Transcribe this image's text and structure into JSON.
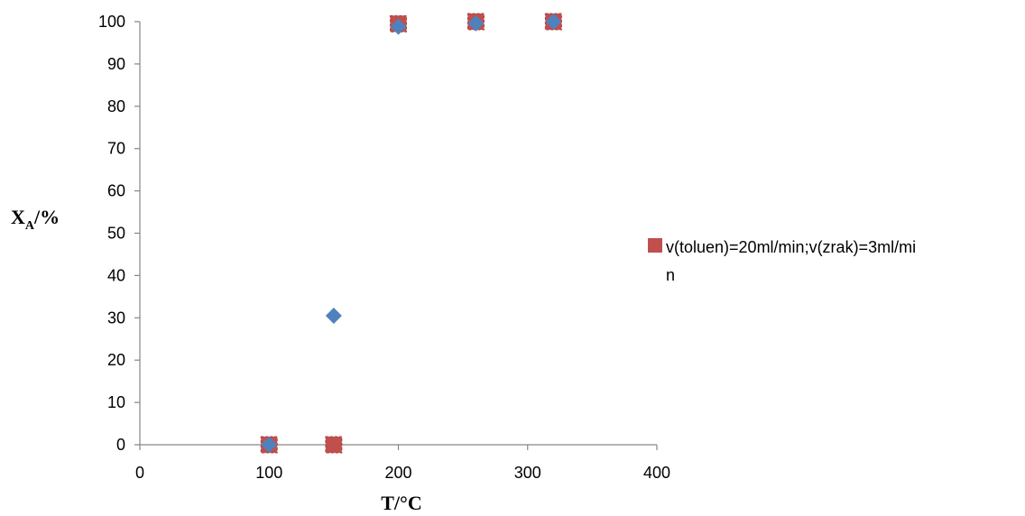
{
  "chart_data": {
    "type": "scatter",
    "xlabel": "T/°C",
    "ylabel_main": "X",
    "ylabel_sub": "A",
    "ylabel_suffix": "/%",
    "xlim": [
      0,
      400
    ],
    "ylim": [
      0,
      100
    ],
    "x_ticks": [
      0,
      100,
      200,
      300,
      400
    ],
    "y_ticks": [
      0,
      10,
      20,
      30,
      40,
      50,
      60,
      70,
      80,
      90,
      100
    ],
    "grid": false,
    "legend_position": "right",
    "series": [
      {
        "name": "v(toluen)=20ml/min;v(zrak)=3ml/min",
        "legend_line1": "v(toluen)=20ml/min;v(zrak)=3ml/mi",
        "legend_line2": "n",
        "marker": "square",
        "color": "#C0504D",
        "x": [
          100,
          150,
          200,
          260,
          320
        ],
        "y": [
          0,
          0,
          99.5,
          100,
          100
        ]
      },
      {
        "marker": "diamond",
        "color": "#4F81BD",
        "x": [
          100,
          150,
          200,
          260,
          320
        ],
        "y": [
          0,
          30.5,
          98.8,
          99.6,
          100
        ]
      }
    ]
  }
}
